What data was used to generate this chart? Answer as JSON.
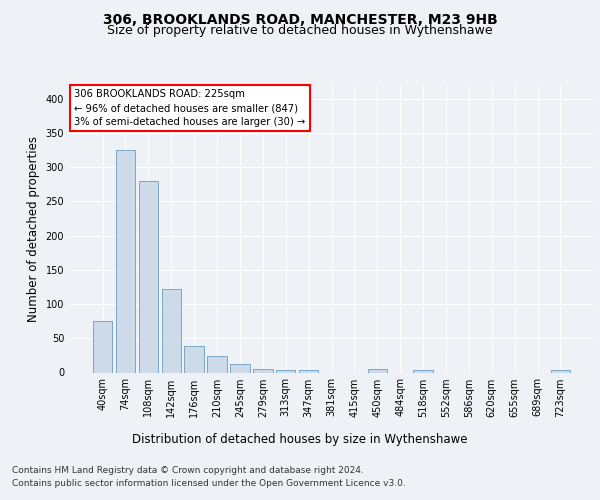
{
  "title_line1": "306, BROOKLANDS ROAD, MANCHESTER, M23 9HB",
  "title_line2": "Size of property relative to detached houses in Wythenshawe",
  "xlabel": "Distribution of detached houses by size in Wythenshawe",
  "ylabel": "Number of detached properties",
  "footer_line1": "Contains HM Land Registry data © Crown copyright and database right 2024.",
  "footer_line2": "Contains public sector information licensed under the Open Government Licence v3.0.",
  "annotation_line1": "306 BROOKLANDS ROAD: 225sqm",
  "annotation_line2": "← 96% of detached houses are smaller (847)",
  "annotation_line3": "3% of semi-detached houses are larger (30) →",
  "bar_labels": [
    "40sqm",
    "74sqm",
    "108sqm",
    "142sqm",
    "176sqm",
    "210sqm",
    "245sqm",
    "279sqm",
    "313sqm",
    "347sqm",
    "381sqm",
    "415sqm",
    "450sqm",
    "484sqm",
    "518sqm",
    "552sqm",
    "586sqm",
    "620sqm",
    "655sqm",
    "689sqm",
    "723sqm"
  ],
  "bar_values": [
    75,
    325,
    280,
    122,
    38,
    24,
    12,
    5,
    4,
    3,
    0,
    0,
    5,
    0,
    4,
    0,
    0,
    0,
    0,
    0,
    3
  ],
  "bar_color": "#cddaea",
  "bar_edge_color": "#6a9bbf",
  "annotation_box_color": "white",
  "annotation_box_edge": "red",
  "ylim": [
    0,
    420
  ],
  "yticks": [
    0,
    50,
    100,
    150,
    200,
    250,
    300,
    350,
    400
  ],
  "background_color": "#eef2f7",
  "plot_bg_color": "#eef2f7",
  "grid_color": "white",
  "title_fontsize": 10,
  "subtitle_fontsize": 9,
  "axis_label_fontsize": 8.5,
  "tick_fontsize": 7,
  "footer_fontsize": 6.5
}
